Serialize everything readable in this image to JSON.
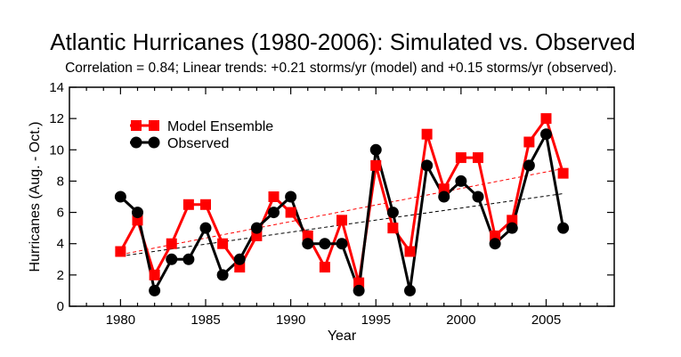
{
  "chart_data": {
    "type": "line",
    "title": "Atlantic Hurricanes (1980-2006): Simulated vs. Observed",
    "subtitle": "Correlation = 0.84; Linear trends:  +0.21 storms/yr (model) and +0.15 storms/yr (observed).",
    "xlabel": "Year",
    "ylabel": "Hurricanes (Aug. - Oct.)",
    "xlim": [
      1977,
      2009
    ],
    "ylim": [
      0,
      14
    ],
    "xticks": [
      1980,
      1985,
      1990,
      1995,
      2000,
      2005
    ],
    "yticks": [
      0,
      2,
      4,
      6,
      8,
      10,
      12,
      14
    ],
    "grid": false,
    "legend_position": "top-left",
    "x": [
      1980,
      1981,
      1982,
      1983,
      1984,
      1985,
      1986,
      1987,
      1988,
      1989,
      1990,
      1991,
      1992,
      1993,
      1994,
      1995,
      1996,
      1997,
      1998,
      1999,
      2000,
      2001,
      2002,
      2003,
      2004,
      2005,
      2006
    ],
    "series": [
      {
        "name": "Model Ensemble",
        "color": "#ff0000",
        "marker": "square",
        "values": [
          3.5,
          5.5,
          2,
          4,
          6.5,
          6.5,
          4,
          2.5,
          4.5,
          7,
          6,
          4.5,
          2.5,
          5.5,
          1.5,
          9,
          5,
          3.5,
          11,
          7.5,
          9.5,
          9.5,
          4.5,
          5.5,
          10.5,
          12,
          8.5
        ],
        "trend": {
          "x": [
            1980,
            2006
          ],
          "y": [
            3.3,
            8.8
          ],
          "style": "dashed"
        }
      },
      {
        "name": "Observed",
        "color": "#000000",
        "marker": "circle",
        "values": [
          7,
          6,
          1,
          3,
          3,
          5,
          2,
          3,
          5,
          6,
          7,
          4,
          4,
          4,
          1,
          10,
          6,
          1,
          9,
          7,
          8,
          7,
          4,
          5,
          9,
          11,
          5
        ],
        "trend": {
          "x": [
            1980,
            2006
          ],
          "y": [
            3.2,
            7.2
          ],
          "style": "dashed"
        }
      }
    ]
  }
}
